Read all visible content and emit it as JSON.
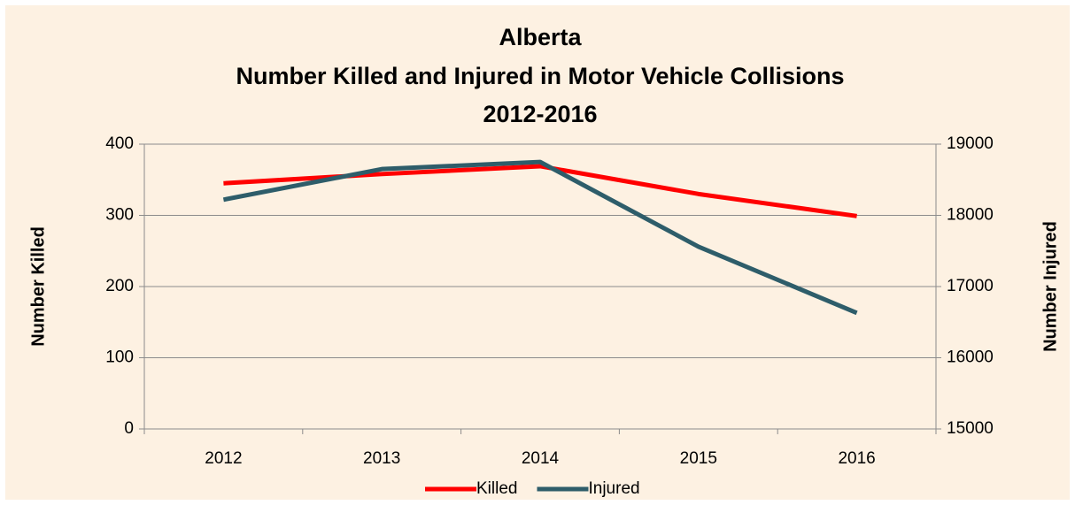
{
  "chart_data": {
    "type": "line",
    "title": [
      "Alberta",
      "Number Killed and Injured in Motor Vehicle Collisions",
      "2012-2016"
    ],
    "y_label": "Number Killed",
    "y2_label": "Number Injured",
    "categories": [
      "2012",
      "2013",
      "2014",
      "2015",
      "2016"
    ],
    "series": [
      {
        "name": "Killed",
        "color": "#ff0000",
        "values": [
          345,
          358,
          369,
          330,
          299
        ]
      },
      {
        "name": "Injured",
        "color": "#2e5d6a",
        "axis": "y2",
        "values": [
          18220,
          18650,
          18750,
          17560,
          16630
        ]
      }
    ],
    "ylim": [
      0,
      400
    ],
    "yticks": [
      0,
      100,
      200,
      300,
      400
    ],
    "y2lim": [
      15000,
      19000
    ],
    "y2ticks": [
      15000,
      16000,
      17000,
      18000,
      19000
    ],
    "grid": true,
    "legend": "bottom"
  }
}
